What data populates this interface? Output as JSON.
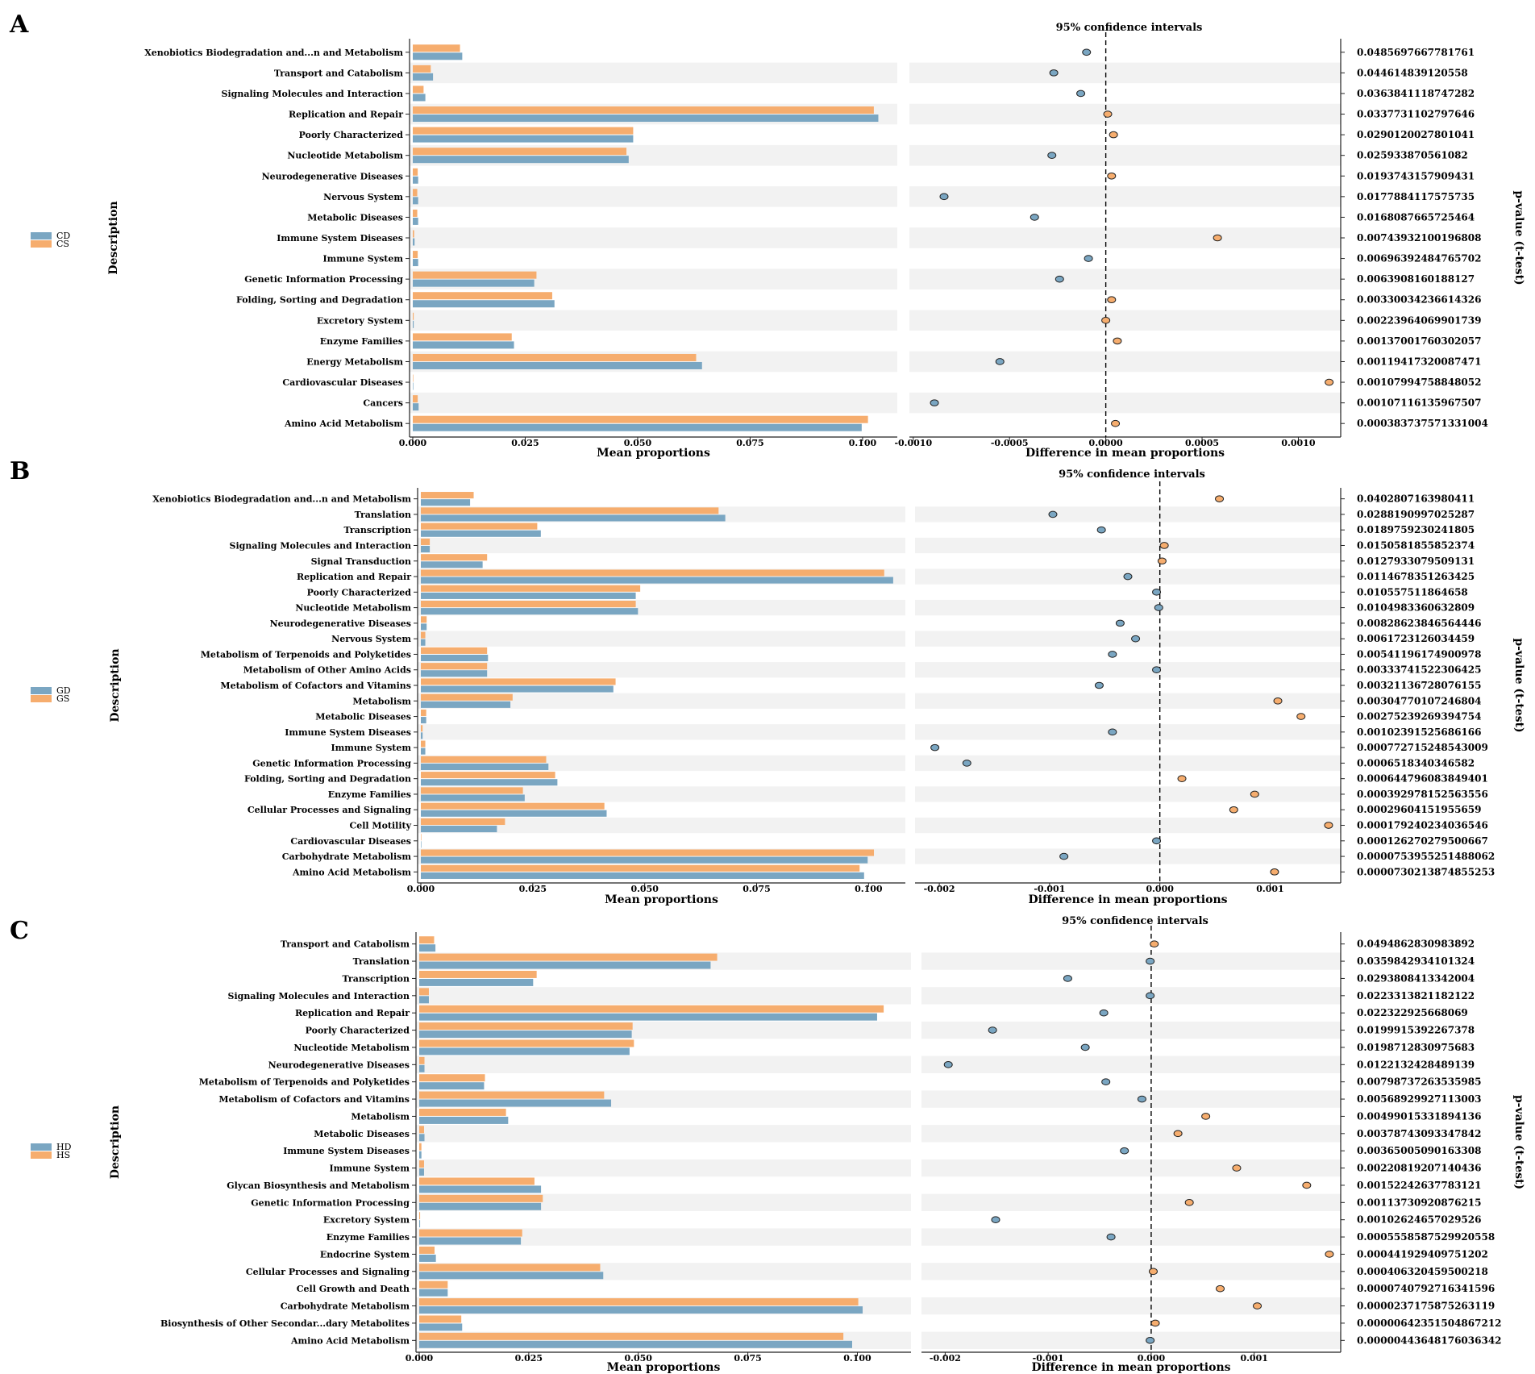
{
  "colors": {
    "case_a": "#7aa6c2",
    "case_b": "#f6ad6e",
    "stripe": "#f2f2f2",
    "axis": "#222222"
  },
  "common": {
    "description_label": "Description",
    "mean_xlabel": "Mean proportions",
    "diff_xlabel": "Difference in mean proportions",
    "ci_title": "95% confidence intervals",
    "pvalue_label": "p-value (t-test)"
  },
  "chart_data": [
    {
      "type": "bar",
      "panel": "A",
      "legend": [
        "CD",
        "CS"
      ],
      "categories": [
        "Xenobiotics Biodegradation and...n and Metabolism",
        "Transport and Catabolism",
        "Signaling Molecules and Interaction",
        "Replication and Repair",
        "Poorly Characterized",
        "Nucleotide Metabolism",
        "Neurodegenerative Diseases",
        "Nervous System",
        "Metabolic Diseases",
        "Immune System Diseases",
        "Immune System",
        "Genetic Information Processing",
        "Folding, Sorting and Degradation",
        "Excretory System",
        "Enzyme Families",
        "Energy Metabolism",
        "Cardiovascular Diseases",
        "Cancers",
        "Amino Acid Metabolism"
      ],
      "series": [
        {
          "name": "CD",
          "values": [
            0.011,
            0.0045,
            0.0028,
            0.1035,
            0.049,
            0.048,
            0.0012,
            0.0012,
            0.0012,
            0.0004,
            0.0012,
            0.027,
            0.0315,
            0.0002,
            0.0225,
            0.0643,
            0.0001,
            0.0013,
            0.0998
          ]
        },
        {
          "name": "CS",
          "values": [
            0.0105,
            0.004,
            0.0024,
            0.1025,
            0.049,
            0.0475,
            0.0011,
            0.001,
            0.001,
            0.0003,
            0.0011,
            0.0275,
            0.031,
            0.0002,
            0.022,
            0.063,
            0.0001,
            0.0011,
            0.1012
          ]
        }
      ],
      "mean_xticks": [
        "0.000",
        "0.025",
        "0.050",
        "0.075",
        "0.100"
      ],
      "mean_xlim": [
        0,
        0.107
      ],
      "diff": [
        -0.0001,
        -0.00027,
        -0.00013,
        1e-05,
        4e-05,
        -0.00028,
        3e-05,
        -0.00084,
        -0.00037,
        0.00058,
        -9e-05,
        -0.00024,
        3e-05,
        0.0,
        6e-05,
        -0.00055,
        0.00116,
        -0.00089,
        5e-05
      ],
      "diff_xticks": [
        "-0.0010",
        "-0.0005",
        "0.0000",
        "0.0005",
        "0.0010"
      ],
      "diff_tick_values": [
        -0.001,
        -0.0005,
        0,
        0.0005,
        0.001
      ],
      "diff_xlim": [
        -0.00102,
        0.00122
      ],
      "pvalues": [
        "0.0485697667781761",
        "0.044614839120558",
        "0.0363841118747282",
        "0.033773110279764 6",
        "0.0290120027801041",
        "0.025933870561082",
        "0.0193743157909431",
        "0.0177884117575735",
        "0.0168087665725464",
        "0.00743932100196808",
        "0.00696392484765702",
        "0.0063908160188127",
        "0.00330034236614326",
        "0.00223964069901739",
        "0.00137001760302057",
        "0.00119417320087471",
        "0.00107994758848052",
        "0.00107116135967507",
        "0.000383737571331004"
      ]
    },
    {
      "type": "bar",
      "panel": "B",
      "legend": [
        "GD",
        "GS"
      ],
      "categories": [
        "Xenobiotics Biodegradation and...n and Metabolism",
        "Translation",
        "Transcription",
        "Signaling Molecules and Interaction",
        "Signal Transduction",
        "Replication and Repair",
        "Poorly Characterized",
        "Nucleotide Metabolism",
        "Neurodegenerative Diseases",
        "Nervous System",
        "Metabolism of Terpenoids and Polyketides",
        "Metabolism of Other Amino Acids",
        "Metabolism of Cofactors and Vitamins",
        "Metabolism",
        "Metabolic Diseases",
        "Immune System Diseases",
        "Immune System",
        "Genetic Information Processing",
        "Folding, Sorting and Degradation",
        "Enzyme Families",
        "Cellular Processes and Signaling",
        "Cell Motility",
        "Cardiovascular Diseases",
        "Carbohydrate Metabolism",
        "Amino Acid Metabolism"
      ],
      "series": [
        {
          "name": "GD",
          "values": [
            0.011,
            0.068,
            0.0268,
            0.002,
            0.0138,
            0.1055,
            0.048,
            0.0485,
            0.0013,
            0.001,
            0.015,
            0.0148,
            0.043,
            0.02,
            0.0012,
            0.0004,
            0.001,
            0.0285,
            0.0305,
            0.0232,
            0.0415,
            0.017,
            0.0001,
            0.0998,
            0.099
          ]
        },
        {
          "name": "GS",
          "values": [
            0.0118,
            0.0665,
            0.026,
            0.002,
            0.0148,
            0.1035,
            0.049,
            0.048,
            0.0013,
            0.001,
            0.0148,
            0.0148,
            0.0435,
            0.0205,
            0.0012,
            0.0004,
            0.001,
            0.028,
            0.03,
            0.0228,
            0.041,
            0.0188,
            0.0001,
            0.1012,
            0.098
          ]
        }
      ],
      "mean_xticks": [
        "0.000",
        "0.025",
        "0.050",
        "0.075",
        "0.100"
      ],
      "mean_xlim": [
        0,
        0.1075
      ],
      "diff": [
        0.00054,
        -0.00097,
        -0.00053,
        4e-05,
        2e-05,
        -0.00029,
        -3e-05,
        -1e-05,
        -0.00036,
        -0.00022,
        -0.00043,
        -3e-05,
        -0.00055,
        0.00107,
        0.00128,
        -0.00043,
        -0.00204,
        -0.00175,
        0.0002,
        0.00086,
        0.00067,
        0.00153,
        -3e-05,
        -0.00087,
        0.00104
      ],
      "diff_xticks": [
        "-0.002",
        "-0.001",
        "0.000",
        "0.001"
      ],
      "diff_tick_values": [
        -0.002,
        -0.001,
        0,
        0.001
      ],
      "diff_xlim": [
        -0.00222,
        0.00164
      ],
      "pvalues": [
        "0.0402807163980411",
        "0.0288190997025287",
        "0.0189759230241805",
        "0.0150581855852374",
        "0.0127933079509131",
        "0.0114678351263425",
        "0.010557511864658",
        "0.0104983360632809",
        "0.00828623846564446",
        "0.0061723126034459",
        "0.00541196174900978",
        "0.00333741522306425",
        "0.00321136728076155",
        "0.00304770107246804",
        "0.00275239269394754",
        "0.00102391525686166",
        "0.000772715248543009",
        "0.000651834034658 2",
        "0.000644796083849401",
        "0.000392978152563556",
        "0.000296041519556 59",
        "0.000179240234036546",
        "0.000126270279500667",
        "0.0000753955251488062",
        "0.0000730213874855253"
      ]
    },
    {
      "type": "bar",
      "panel": "C",
      "legend": [
        "HD",
        "HS"
      ],
      "categories": [
        "Transport and Catabolism",
        "Translation",
        "Transcription",
        "Signaling Molecules and Interaction",
        "Replication and Repair",
        "Poorly Characterized",
        "Nucleotide Metabolism",
        "Neurodegenerative Diseases",
        "Metabolism of Terpenoids and Polyketides",
        "Metabolism of Cofactors and Vitamins",
        "Metabolism",
        "Metabolic Diseases",
        "Immune System Diseases",
        "Immune System",
        "Glycan Biosynthesis and Metabolism",
        "Genetic Information Processing",
        "Excretory System",
        "Enzyme Families",
        "Endocrine System",
        "Cellular Processes and Signaling",
        "Cell Growth and Death",
        "Carbohydrate Metabolism",
        "Biosynthesis of Other Secondar...dary Metabolites",
        "Amino Acid Metabolism"
      ],
      "series": [
        {
          "name": "HD",
          "values": [
            0.0037,
            0.0665,
            0.026,
            0.0022,
            0.1045,
            0.0485,
            0.048,
            0.0012,
            0.0148,
            0.0438,
            0.0203,
            0.0012,
            0.0005,
            0.0011,
            0.0278,
            0.0278,
            0.0002,
            0.0232,
            0.0038,
            0.042,
            0.0065,
            0.1012,
            0.0098,
            0.0988
          ]
        },
        {
          "name": "HS",
          "values": [
            0.0034,
            0.068,
            0.0268,
            0.0022,
            0.106,
            0.0487,
            0.049,
            0.0012,
            0.015,
            0.0422,
            0.0198,
            0.0011,
            0.0005,
            0.0011,
            0.0263,
            0.0282,
            0.0002,
            0.0235,
            0.0035,
            0.0413,
            0.0065,
            0.1002,
            0.0096,
            0.0968
          ]
        }
      ],
      "mean_xticks": [
        "0.000",
        "0.025",
        "0.050",
        "0.075",
        "0.100"
      ],
      "mean_xlim": [
        0,
        0.1115
      ],
      "diff": [
        3e-05,
        -1e-05,
        -0.00081,
        -1e-05,
        -0.00046,
        -0.00154,
        -0.00064,
        -0.00197,
        -0.00044,
        -9e-05,
        0.00053,
        0.00026,
        -0.00026,
        0.00083,
        0.00151,
        0.00037,
        -0.00151,
        -0.00039,
        0.00173,
        2e-05,
        0.00067,
        0.00103,
        4e-05,
        -1e-05
      ],
      "diff_xticks": [
        "-0.002",
        "-0.001",
        "0.000",
        "0.001"
      ],
      "diff_tick_values": [
        -0.002,
        -0.001,
        0,
        0.001
      ],
      "diff_xlim": [
        -0.00223,
        0.00184
      ],
      "pvalues": [
        "0.0494862830983892",
        "0.0359842934101324",
        "0.0293808413342004",
        "0.0223313821182122",
        "0.022322925668069",
        "0.0199915392267378",
        "0.0198712830975683",
        "0.0122132428489139",
        "0.00798737263535985",
        "0.00568929927113003",
        "0.00499015331894136",
        "0.00378743093347842",
        "0.00365005090163308",
        "0.00220819207140436",
        "0.00152242637783121",
        "0.00113730920876215",
        "0.00102624657029526",
        "0.000555858752992 0558",
        "0.000441929409751202",
        "0.000406320459500218",
        "0.000074079271634159 6",
        "0.0000237175875263119",
        "0.00000642351504867212",
        "0.00000443648176036342"
      ]
    }
  ]
}
